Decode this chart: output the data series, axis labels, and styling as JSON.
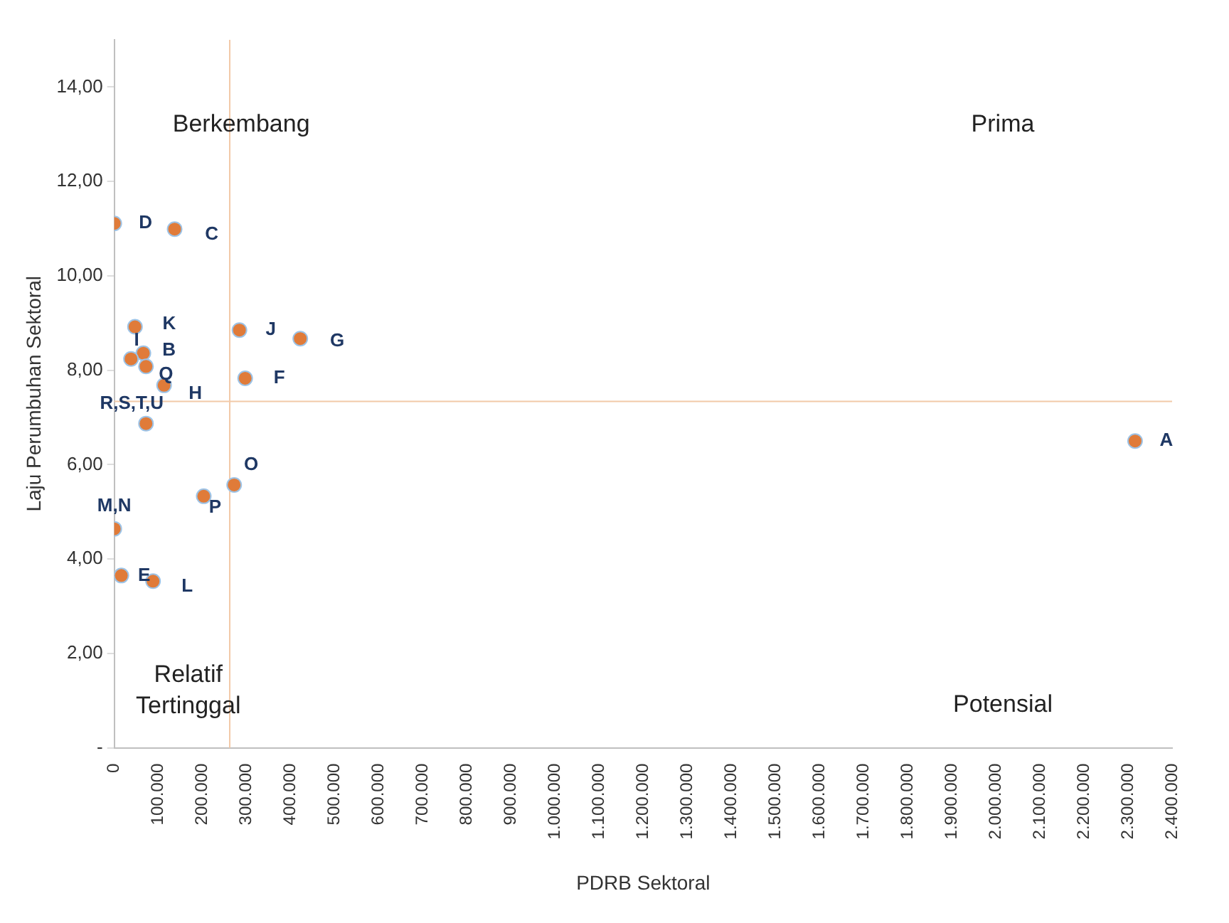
{
  "chart_data": {
    "type": "scatter",
    "xlabel": "PDRB Sektoral",
    "ylabel": "Laju Perumbuhan Sektoral",
    "x": [
      0,
      137000,
      47000,
      284000,
      422000,
      66000,
      38000,
      72000,
      297000,
      113000,
      72000,
      2316000,
      272000,
      203000,
      0,
      16000,
      88000
    ],
    "series": [
      {
        "color": "#e07b39",
        "values": [
          11.11,
          10.99,
          8.92,
          8.85,
          8.67,
          8.36,
          8.24,
          8.08,
          7.83,
          7.68,
          6.87,
          6.5,
          5.57,
          5.33,
          4.64,
          3.65,
          3.53
        ]
      }
    ],
    "marker": "circle",
    "grid": false,
    "legend": false,
    "xlim": [
      0,
      2400000
    ],
    "xticks": [
      0,
      {
        "value": 100000,
        "label": "100.000"
      },
      {
        "value": 200000,
        "label": "200.000"
      },
      {
        "value": 300000,
        "label": "300.000"
      },
      {
        "value": 400000,
        "label": "400.000"
      },
      {
        "value": 500000,
        "label": "500.000"
      },
      {
        "value": 600000,
        "label": "600.000"
      },
      {
        "value": 700000,
        "label": "700.000"
      },
      {
        "value": 800000,
        "label": "800.000"
      },
      {
        "value": 900000,
        "label": "900.000"
      },
      {
        "value": 1000000,
        "label": "1.000.000"
      },
      {
        "value": 1100000,
        "label": "1.100.000"
      },
      {
        "value": 1200000,
        "label": "1.200.000"
      },
      {
        "value": 1300000,
        "label": "1.300.000"
      },
      {
        "value": 1400000,
        "label": "1.400.000"
      },
      {
        "value": 1500000,
        "label": "1.500.000"
      },
      {
        "value": 1600000,
        "label": "1.600.000"
      },
      {
        "value": 1700000,
        "label": "1.700.000"
      },
      {
        "value": 1800000,
        "label": "1.800.000"
      },
      {
        "value": 1900000,
        "label": "1.900.000"
      },
      {
        "value": 2000000,
        "label": "2.000.000"
      },
      {
        "value": 2100000,
        "label": "2.100.000"
      },
      {
        "value": 2200000,
        "label": "2.200.000"
      },
      {
        "value": 2300000,
        "label": "2.300.000"
      },
      {
        "value": 2400000,
        "label": "2.400.000"
      }
    ],
    "ylim": [
      0,
      15
    ],
    "yticks": [
      {
        "value": 0,
        "label": "-"
      },
      {
        "value": 2,
        "label": "2,00"
      },
      {
        "value": 4,
        "label": "4,00"
      },
      {
        "value": 6,
        "label": "6,00"
      },
      {
        "value": 8,
        "label": "8,00"
      },
      {
        "value": 10,
        "label": "10,00"
      },
      {
        "value": 12,
        "label": "12,00"
      },
      {
        "value": 14,
        "label": "14,00"
      }
    ],
    "ref_lines": [
      {
        "axis": "x",
        "value": 262000,
        "color": "#f2c9a8"
      },
      {
        "axis": "y",
        "value": 7.34,
        "color": "#f2c9a8"
      }
    ],
    "annotations": [
      "Berkembang",
      "Prima",
      "Relatif Tertinggal",
      "Potensial",
      {
        "text": "D",
        "x": 0,
        "y": 11.11
      },
      {
        "text": "C",
        "x": 137000,
        "y": 10.99
      },
      {
        "text": "K",
        "x": 47000,
        "y": 8.92
      },
      {
        "text": "J",
        "x": 284000,
        "y": 8.85
      },
      {
        "text": "G",
        "x": 422000,
        "y": 8.67
      },
      {
        "text": "B",
        "x": 66000,
        "y": 8.36
      },
      {
        "text": "I",
        "x": 38000,
        "y": 8.24
      },
      {
        "text": "Q",
        "x": 72000,
        "y": 8.08
      },
      {
        "text": "F",
        "x": 297000,
        "y": 7.83
      },
      {
        "text": "H",
        "x": 113000,
        "y": 7.68
      },
      {
        "text": "R,S,T,U",
        "x": 72000,
        "y": 6.87
      },
      {
        "text": "A",
        "x": 2316000,
        "y": 6.5
      },
      {
        "text": "O",
        "x": 272000,
        "y": 5.57
      },
      {
        "text": "P",
        "x": 203000,
        "y": 5.33
      },
      {
        "text": "M,N",
        "x": 0,
        "y": 4.64
      },
      {
        "text": "E",
        "x": 16000,
        "y": 3.65
      },
      {
        "text": "L",
        "x": 88000,
        "y": 3.53
      }
    ]
  }
}
